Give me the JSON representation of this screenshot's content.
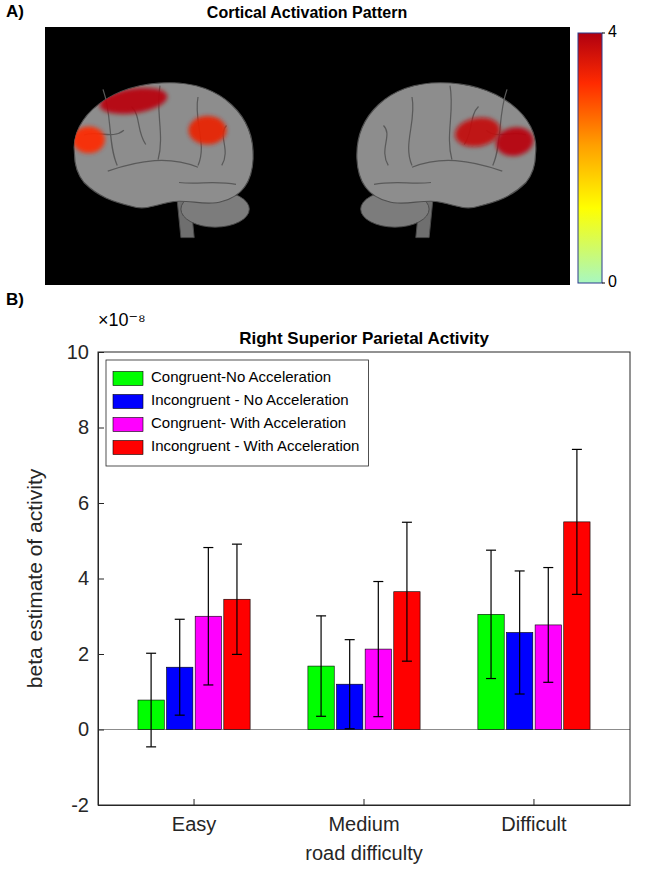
{
  "chart_data": [
    {
      "type": "brain_map",
      "panel_label": "A)",
      "title": "Cortical Activation Pattern",
      "activations": [
        [
          3.9,
          3.2,
          3.4
        ],
        [
          3.8,
          3.9
        ]
      ],
      "colorbar": {
        "range": [
          0,
          4
        ],
        "ticks": [
          0,
          4
        ]
      }
    },
    {
      "type": "bar",
      "panel_label": "B)",
      "title": "Right Superior Parietal Activity",
      "annotations": [
        "×10⁻⁸"
      ],
      "x_label": "road difficulty",
      "y_label": "beta estimate of activity",
      "categories": [
        "Easy",
        "Medium",
        "Difficult"
      ],
      "series": [
        {
          "name": "Congruent-No Acceleration",
          "color": "#00ff00",
          "values": [
            0.78,
            1.68,
            3.05
          ],
          "errors": [
            1.24,
            1.33,
            1.7
          ]
        },
        {
          "name": "Incongruent - No Acceleration",
          "color": "#0000ff",
          "values": [
            1.65,
            1.2,
            2.57
          ],
          "errors": [
            1.27,
            1.18,
            1.63
          ]
        },
        {
          "name": "Congruent- With Acceleration",
          "color": "#ff00ff",
          "values": [
            3.0,
            2.13,
            2.77
          ],
          "errors": [
            1.82,
            1.79,
            1.52
          ]
        },
        {
          "name": "Incongruent - With Acceleration",
          "color": "#ff0000",
          "values": [
            3.45,
            3.65,
            5.5
          ],
          "errors": [
            1.46,
            1.84,
            1.92
          ]
        }
      ],
      "ylim": [
        -2,
        10
      ],
      "yticks": [
        -2,
        0,
        2,
        4,
        6,
        8,
        10
      ],
      "legend": "top-left",
      "grid": false
    }
  ]
}
